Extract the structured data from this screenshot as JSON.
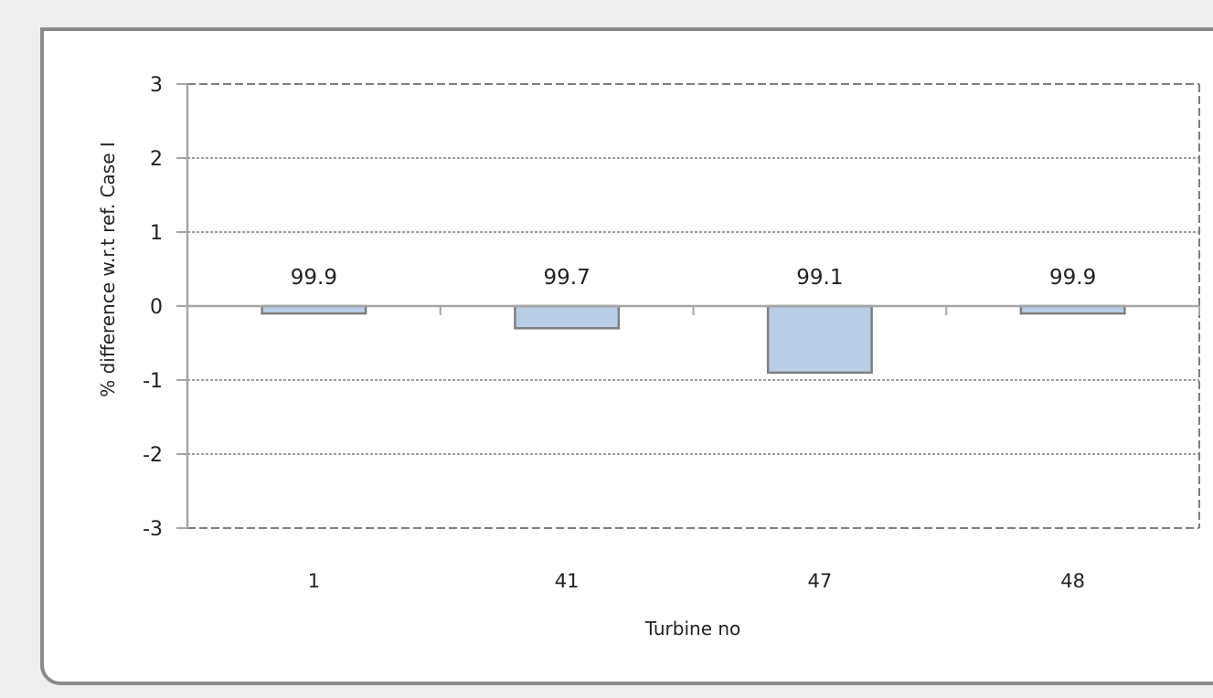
{
  "chart_data": {
    "type": "bar",
    "title": "",
    "xlabel": "Turbine no",
    "ylabel": "% difference w.r.t ref. Case I",
    "categories": [
      "1",
      "41",
      "47",
      "48"
    ],
    "values": [
      -0.1,
      -0.3,
      -0.9,
      -0.1
    ],
    "data_labels": [
      "99.9",
      "99.7",
      "99.1",
      "99.9"
    ],
    "yticks": [
      "3",
      "2",
      "1",
      "0",
      "-1",
      "-2",
      "-3"
    ],
    "ylim": [
      -3,
      3
    ],
    "grid": true,
    "legend": "none",
    "colors": {
      "bar_fill": "#b9cde5",
      "bar_stroke": "#7f7f7f",
      "grid": "#7f7f7f",
      "axis": "#a6a6a6"
    }
  }
}
